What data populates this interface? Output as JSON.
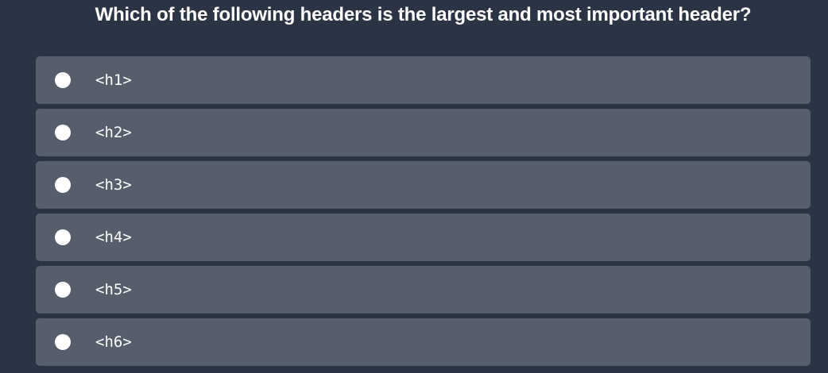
{
  "question": {
    "text": "Which of the following headers is the largest and most important header?"
  },
  "options": [
    {
      "label": "<h1>",
      "selected": false
    },
    {
      "label": "<h2>",
      "selected": false
    },
    {
      "label": "<h3>",
      "selected": false
    },
    {
      "label": "<h4>",
      "selected": false
    },
    {
      "label": "<h5>",
      "selected": false
    },
    {
      "label": "<h6>",
      "selected": false
    }
  ],
  "colors": {
    "background": "#2b3444",
    "option_background": "#565e6b",
    "text": "#ffffff"
  }
}
